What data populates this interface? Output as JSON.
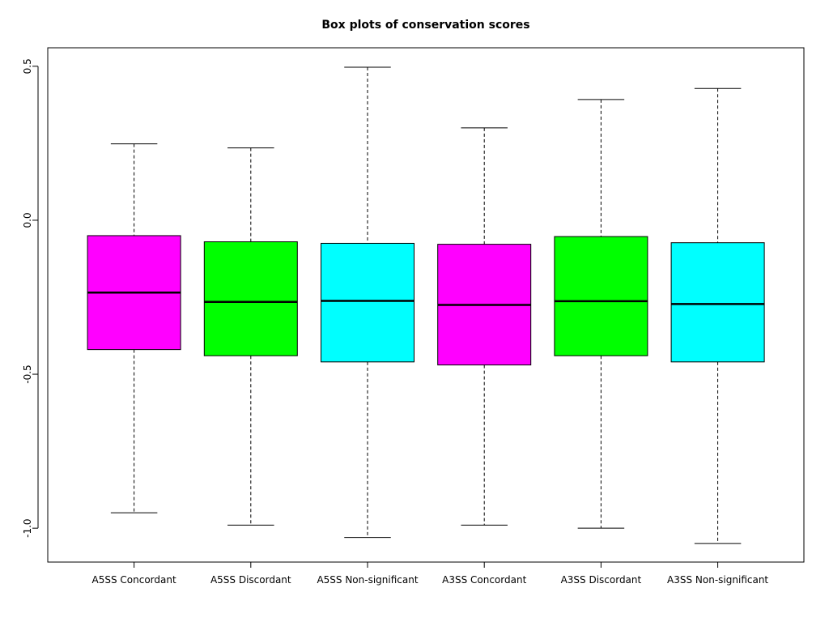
{
  "chart_data": {
    "type": "box",
    "title": "Box plots of conservation scores",
    "xlabel": "",
    "ylabel": "",
    "ylim": [
      -1.11,
      0.56
    ],
    "yticks": [
      {
        "value": 0.5,
        "label": "0.5"
      },
      {
        "value": 0.0,
        "label": "0.0"
      },
      {
        "value": -0.5,
        "label": "-0.5"
      },
      {
        "value": -1.0,
        "label": "-1.0"
      }
    ],
    "categories": [
      "A5SS Concordant",
      "A5SS Discordant",
      "A5SS Non-significant",
      "A3SS Concordant",
      "A3SS Discordant",
      "A3SS Non-significant"
    ],
    "boxes": [
      {
        "category": "A5SS Concordant",
        "color": "#ff00ff",
        "whisker_low": -0.95,
        "q1": -0.42,
        "median": -0.235,
        "q3": -0.05,
        "whisker_high": 0.248
      },
      {
        "category": "A5SS Discordant",
        "color": "#00ff00",
        "whisker_low": -0.99,
        "q1": -0.44,
        "median": -0.265,
        "q3": -0.07,
        "whisker_high": 0.235
      },
      {
        "category": "A5SS Non-significant",
        "color": "#00ffff",
        "whisker_low": -1.03,
        "q1": -0.46,
        "median": -0.262,
        "q3": -0.075,
        "whisker_high": 0.497
      },
      {
        "category": "A3SS Concordant",
        "color": "#ff00ff",
        "whisker_low": -0.99,
        "q1": -0.47,
        "median": -0.275,
        "q3": -0.078,
        "whisker_high": 0.3
      },
      {
        "category": "A3SS Discordant",
        "color": "#00ff00",
        "whisker_low": -1.0,
        "q1": -0.44,
        "median": -0.263,
        "q3": -0.053,
        "whisker_high": 0.392
      },
      {
        "category": "A3SS Non-significant",
        "color": "#00ffff",
        "whisker_low": -1.05,
        "q1": -0.46,
        "median": -0.272,
        "q3": -0.073,
        "whisker_high": 0.428
      }
    ]
  }
}
